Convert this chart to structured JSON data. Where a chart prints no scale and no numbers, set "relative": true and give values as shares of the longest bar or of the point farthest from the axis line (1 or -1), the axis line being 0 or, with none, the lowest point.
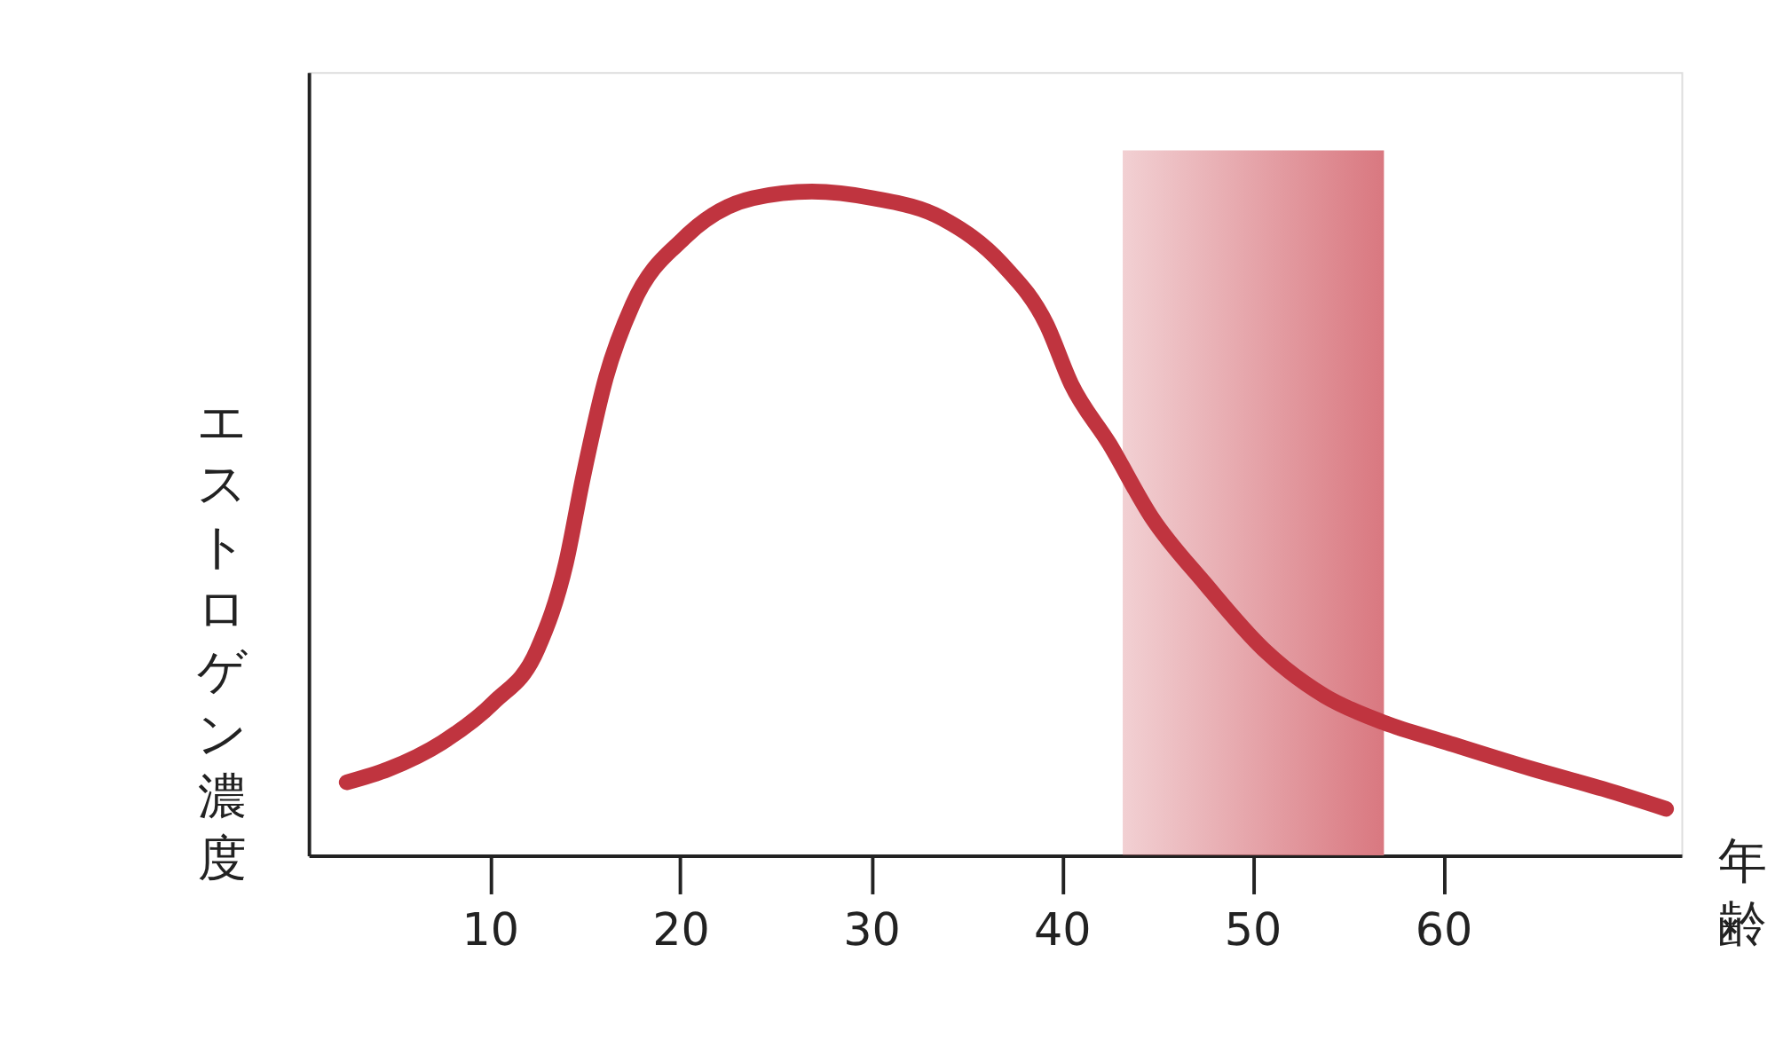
{
  "chart_data": {
    "type": "line",
    "relative": true,
    "xlabel": "年齢",
    "ylabel": "エストロゲン濃度",
    "xlim": [
      0.5,
      72.5
    ],
    "xticks": [
      10,
      20,
      30,
      40,
      50,
      60
    ],
    "grid": false,
    "line_style": "solid",
    "series": [
      {
        "color": "#c0343f",
        "x": [
          2.5,
          4.7,
          7.5,
          10.2,
          12.5,
          14.0,
          14.9,
          16.1,
          17.5,
          20.2,
          23.8,
          26.9,
          30.1,
          33.7,
          36.9,
          39.2,
          40.5,
          42.5,
          44.7,
          47.5,
          50.6,
          53.8,
          56.9,
          60.2,
          64.7,
          68.4,
          71.7
        ],
        "values": [
          0.11,
          0.13,
          0.17,
          0.23,
          0.31,
          0.44,
          0.57,
          0.72,
          0.83,
          0.93,
          0.99,
          1.0,
          0.99,
          0.96,
          0.89,
          0.8,
          0.71,
          0.62,
          0.51,
          0.41,
          0.31,
          0.24,
          0.2,
          0.17,
          0.13,
          0.1,
          0.07
        ]
      }
    ],
    "bands": [
      {
        "axis": "x",
        "from": 43.2,
        "to": 56.9,
        "color": "#d97880"
      }
    ]
  }
}
